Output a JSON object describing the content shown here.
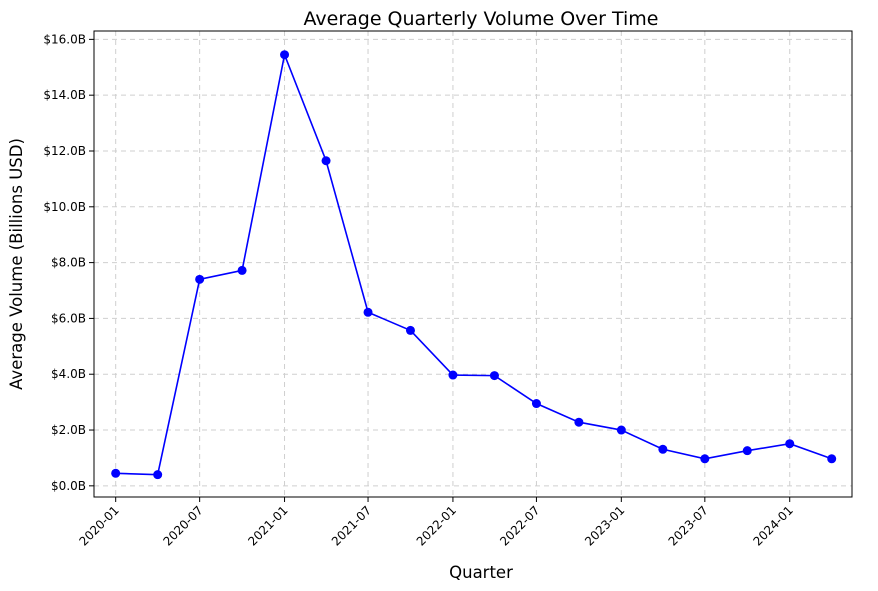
{
  "chart_data": {
    "type": "line",
    "title": "Average Quarterly Volume Over Time",
    "xlabel": "Quarter",
    "ylabel": "Average Volume (Billions USD)",
    "ylim": [
      -0.4,
      16.3
    ],
    "xlim": [
      "2019-11-15",
      "2024-05-15"
    ],
    "grid": true,
    "x_ticks": [
      "2020-01",
      "2020-07",
      "2021-01",
      "2021-07",
      "2022-01",
      "2022-07",
      "2023-01",
      "2023-07",
      "2024-01"
    ],
    "y_ticks": [
      0,
      2,
      4,
      6,
      8,
      10,
      12,
      14,
      16
    ],
    "y_tick_labels": [
      "$0.0B",
      "$2.0B",
      "$4.0B",
      "$6.0B",
      "$8.0B",
      "$10.0B",
      "$12.0B",
      "$14.0B",
      "$16.0B"
    ],
    "series": [
      {
        "color": "#0000ff",
        "marker": "circle",
        "x": [
          "2020-01-01",
          "2020-04-01",
          "2020-07-01",
          "2020-10-01",
          "2021-01-01",
          "2021-04-01",
          "2021-07-01",
          "2021-10-01",
          "2022-01-01",
          "2022-04-01",
          "2022-07-01",
          "2022-10-01",
          "2023-01-01",
          "2023-04-01",
          "2023-07-01",
          "2023-10-01",
          "2024-01-01",
          "2024-04-01"
        ],
        "values": [
          0.45,
          0.4,
          7.4,
          7.72,
          15.45,
          11.65,
          6.22,
          5.57,
          3.97,
          3.95,
          2.95,
          2.28,
          2.0,
          1.31,
          0.97,
          1.26,
          1.51,
          0.97
        ]
      }
    ]
  }
}
